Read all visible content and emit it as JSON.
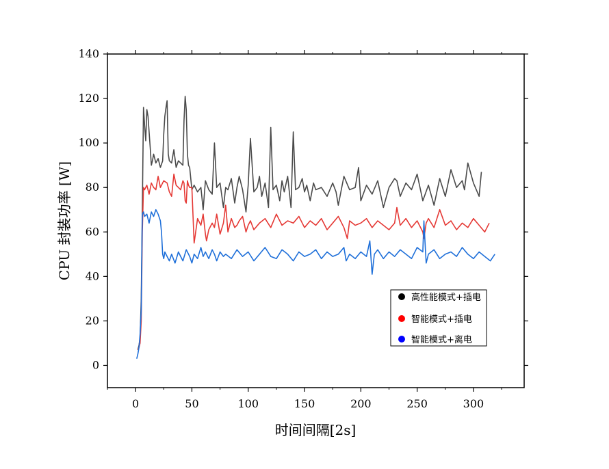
{
  "chart_data": {
    "type": "line",
    "xlabel": "时间间隔[2s]",
    "ylabel": "CPU 封装功率 [W]",
    "xlim": [
      -25,
      345
    ],
    "ylim": [
      -10,
      140
    ],
    "x_ticks": [
      0,
      50,
      100,
      150,
      200,
      250,
      300
    ],
    "y_ticks": [
      0,
      20,
      40,
      60,
      80,
      100,
      120,
      140
    ],
    "grid": false,
    "legend": {
      "placement": "lower-right"
    },
    "series": [
      {
        "name": "高性能模式+插电",
        "color": "#4a4a4a",
        "marker_color": "#000000",
        "x": [
          2,
          3,
          4,
          5,
          6,
          7,
          8,
          9,
          10,
          11,
          12,
          13,
          14,
          15,
          16,
          18,
          20,
          22,
          24,
          25,
          26,
          27,
          28,
          29,
          30,
          32,
          34,
          36,
          38,
          40,
          42,
          43,
          44,
          45,
          46,
          47,
          48,
          50,
          52,
          55,
          58,
          60,
          62,
          65,
          68,
          70,
          72,
          75,
          78,
          80,
          82,
          85,
          88,
          90,
          92,
          95,
          98,
          100,
          102,
          105,
          108,
          110,
          112,
          115,
          118,
          120,
          122,
          125,
          128,
          130,
          132,
          135,
          138,
          140,
          142,
          145,
          148,
          150,
          152,
          155,
          158,
          160,
          165,
          170,
          175,
          178,
          180,
          185,
          190,
          195,
          198,
          200,
          205,
          210,
          215,
          220,
          225,
          230,
          232,
          235,
          240,
          245,
          250,
          255,
          260,
          265,
          270,
          275,
          280,
          285,
          290,
          292,
          295,
          300,
          305,
          307
        ],
        "values": [
          7,
          9,
          12,
          30,
          70,
          116,
          108,
          101,
          115,
          112,
          105,
          98,
          90,
          92,
          95,
          91,
          93,
          89,
          92,
          104,
          112,
          116,
          119,
          95,
          92,
          91,
          97,
          89,
          92,
          91,
          90,
          110,
          121,
          115,
          95,
          90,
          89,
          79,
          81,
          78,
          80,
          70,
          83,
          79,
          77,
          100,
          80,
          82,
          71,
          80,
          79,
          84,
          73,
          80,
          85,
          79,
          69,
          81,
          102,
          78,
          80,
          85,
          76,
          82,
          71,
          107,
          79,
          81,
          74,
          83,
          78,
          85,
          71,
          105,
          79,
          80,
          84,
          78,
          81,
          74,
          82,
          79,
          80,
          76,
          82,
          78,
          72,
          85,
          79,
          80,
          89,
          74,
          81,
          77,
          83,
          71,
          80,
          84,
          83,
          76,
          82,
          79,
          86,
          74,
          81,
          72,
          84,
          76,
          88,
          80,
          83,
          79,
          91,
          82,
          76,
          87
        ]
      },
      {
        "name": "智能模式+插电",
        "color": "#e53935",
        "marker_color": "#ff0000",
        "x": [
          2,
          3,
          4,
          5,
          6,
          7,
          8,
          10,
          12,
          14,
          16,
          18,
          20,
          22,
          25,
          28,
          30,
          32,
          34,
          36,
          38,
          40,
          42,
          43,
          44,
          45,
          46,
          47,
          48,
          50,
          52,
          55,
          58,
          60,
          62,
          63,
          65,
          68,
          70,
          72,
          75,
          78,
          80,
          82,
          85,
          88,
          90,
          92,
          95,
          98,
          100,
          102,
          105,
          110,
          115,
          120,
          125,
          130,
          135,
          140,
          145,
          150,
          155,
          160,
          165,
          170,
          175,
          180,
          185,
          188,
          190,
          195,
          200,
          205,
          210,
          215,
          220,
          225,
          230,
          232,
          235,
          240,
          245,
          250,
          255,
          256,
          258,
          260,
          265,
          270,
          275,
          280,
          285,
          290,
          295,
          300,
          305,
          310,
          314
        ],
        "values": [
          7,
          8,
          10,
          20,
          60,
          80,
          79,
          81,
          77,
          82,
          80,
          79,
          85,
          80,
          83,
          82,
          78,
          76,
          86,
          81,
          80,
          79,
          83,
          82,
          74,
          73,
          83,
          81,
          80,
          80,
          55,
          66,
          63,
          68,
          59,
          56,
          61,
          64,
          62,
          68,
          59,
          64,
          72,
          60,
          66,
          62,
          63,
          65,
          67,
          60,
          63,
          65,
          61,
          64,
          66,
          62,
          68,
          63,
          65,
          64,
          67,
          62,
          65,
          63,
          66,
          61,
          64,
          67,
          62,
          57,
          65,
          63,
          64,
          66,
          62,
          65,
          63,
          61,
          64,
          71,
          63,
          66,
          62,
          65,
          60,
          57,
          64,
          66,
          62,
          70,
          63,
          65,
          61,
          64,
          62,
          66,
          63,
          60,
          64
        ]
      },
      {
        "name": "智能模式+离电",
        "color": "#1e6fd9",
        "marker_color": "#0000ff",
        "x": [
          1,
          2,
          3,
          4,
          5,
          6,
          7,
          8,
          10,
          12,
          14,
          16,
          18,
          20,
          22,
          23,
          24,
          25,
          26,
          28,
          30,
          32,
          35,
          38,
          40,
          42,
          45,
          48,
          50,
          52,
          55,
          58,
          60,
          62,
          65,
          68,
          70,
          72,
          75,
          78,
          80,
          85,
          90,
          95,
          100,
          105,
          110,
          115,
          120,
          125,
          130,
          135,
          140,
          145,
          150,
          155,
          160,
          165,
          170,
          175,
          180,
          185,
          187,
          190,
          195,
          200,
          205,
          208,
          210,
          212,
          215,
          220,
          225,
          230,
          235,
          240,
          245,
          250,
          255,
          256,
          257,
          258,
          260,
          265,
          270,
          275,
          280,
          285,
          290,
          295,
          300,
          305,
          310,
          315,
          319
        ],
        "values": [
          3,
          5,
          8,
          14,
          25,
          68,
          69,
          67,
          68,
          64,
          69,
          67,
          70,
          68,
          65,
          60,
          50,
          48,
          51,
          49,
          47,
          50,
          46,
          51,
          49,
          47,
          52,
          49,
          46,
          50,
          48,
          53,
          49,
          51,
          48,
          52,
          50,
          47,
          51,
          49,
          50,
          48,
          52,
          49,
          51,
          47,
          50,
          53,
          49,
          48,
          52,
          50,
          47,
          51,
          49,
          50,
          52,
          48,
          51,
          49,
          50,
          53,
          47,
          50,
          48,
          51,
          49,
          56,
          41,
          50,
          52,
          48,
          51,
          49,
          52,
          50,
          48,
          53,
          51,
          65,
          55,
          46,
          50,
          52,
          48,
          50,
          51,
          49,
          53,
          50,
          48,
          51,
          49,
          47,
          50
        ]
      }
    ]
  }
}
